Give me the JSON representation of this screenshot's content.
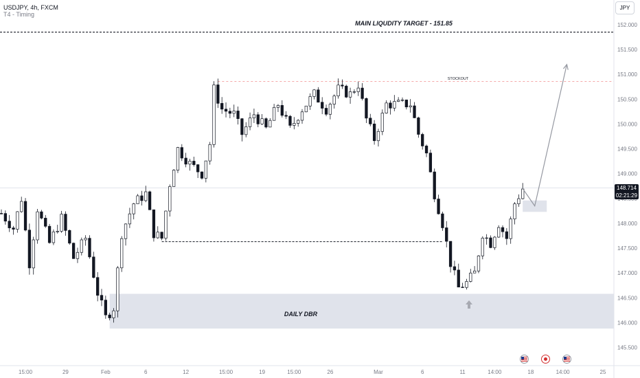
{
  "header": {
    "symbol": "USDJPY, 4h, FXCM",
    "indicator": "T4 - Timing"
  },
  "currency_label": "JPY",
  "last_price": {
    "price": "148.714",
    "countdown": "02:21:29"
  },
  "colors": {
    "up": "#131722",
    "down": "#131722",
    "zone": "#e0e3eb",
    "dashed_red": "#f28b8b",
    "arrow": "#9598a1",
    "badge_bg": "#131722"
  },
  "annotations": {
    "main_target": "MAIN LIQUDITY TARGET - 151.85",
    "stockout": "STOCKOUT",
    "daily_dbr": "DAILY DBR"
  },
  "events": [
    {
      "icon": "us-flag-icon"
    },
    {
      "icon": "event-dot-icon"
    },
    {
      "icon": "us-flag-icon"
    }
  ],
  "chart_data": {
    "type": "candlestick",
    "symbol": "USDJPY",
    "timeframe": "4h",
    "ylim": [
      145.3,
      152.2
    ],
    "y_ticks": [
      "152.000",
      "151.500",
      "151.000",
      "150.500",
      "150.000",
      "149.500",
      "149.000",
      "148.500",
      "148.000",
      "147.500",
      "147.000",
      "146.500",
      "146.000",
      "145.500"
    ],
    "x_ticks": [
      "15:00",
      "29",
      "Feb",
      "6",
      "12",
      "15:00",
      "19",
      "15:00",
      "26",
      "Mar",
      "6",
      "11",
      "14:00",
      "18",
      "14:00",
      "25"
    ],
    "x_tick_bars": [
      6,
      16,
      26,
      36,
      46,
      56,
      65,
      73,
      82,
      94,
      105,
      115,
      123,
      132,
      140,
      150
    ],
    "waypoints": [
      [
        0,
        148.2
      ],
      [
        3,
        147.9
      ],
      [
        5,
        148.5
      ],
      [
        7,
        147.2
      ],
      [
        9,
        148.3
      ],
      [
        12,
        147.6
      ],
      [
        15,
        148.1
      ],
      [
        18,
        147.3
      ],
      [
        21,
        147.7
      ],
      [
        24,
        146.6
      ],
      [
        26,
        146.1
      ],
      [
        28,
        146.3
      ],
      [
        30,
        147.8
      ],
      [
        33,
        148.4
      ],
      [
        36,
        148.6
      ],
      [
        38,
        147.8
      ],
      [
        40,
        147.7
      ],
      [
        42,
        148.8
      ],
      [
        44,
        149.5
      ],
      [
        47,
        149.2
      ],
      [
        50,
        149.0
      ],
      [
        52,
        149.6
      ],
      [
        53,
        150.7
      ],
      [
        55,
        150.3
      ],
      [
        58,
        150.2
      ],
      [
        60,
        149.8
      ],
      [
        63,
        150.2
      ],
      [
        66,
        149.9
      ],
      [
        69,
        150.4
      ],
      [
        72,
        149.9
      ],
      [
        75,
        150.3
      ],
      [
        78,
        150.6
      ],
      [
        81,
        150.3
      ],
      [
        84,
        150.7
      ],
      [
        87,
        150.6
      ],
      [
        89,
        150.8
      ],
      [
        91,
        150.1
      ],
      [
        93,
        149.7
      ],
      [
        96,
        150.4
      ],
      [
        99,
        150.4
      ],
      [
        102,
        150.4
      ],
      [
        104,
        149.8
      ],
      [
        106,
        149.4
      ],
      [
        108,
        148.6
      ],
      [
        110,
        148.0
      ],
      [
        112,
        147.2
      ],
      [
        114,
        146.7
      ],
      [
        116,
        146.8
      ],
      [
        118,
        147.0
      ],
      [
        120,
        147.8
      ],
      [
        122,
        147.6
      ],
      [
        124,
        148.0
      ],
      [
        126,
        147.7
      ],
      [
        128,
        148.4
      ],
      [
        130,
        148.7
      ]
    ],
    "levels": [
      {
        "label": "MAIN LIQUDITY TARGET - 151.85",
        "price": 151.85,
        "style": "dashed"
      },
      {
        "label": "STOCKOUT",
        "price": 150.86,
        "style": "dashed-red"
      },
      {
        "label": "",
        "price": 147.63,
        "style": "dashed"
      }
    ],
    "zones": [
      {
        "label": "DAILY DBR",
        "from": 145.88,
        "to": 146.58
      },
      {
        "label": "",
        "from": 148.23,
        "to": 148.46
      }
    ],
    "projection": [
      [
        130,
        148.7
      ],
      [
        133,
        148.35
      ],
      [
        141,
        151.2
      ]
    ],
    "last_price": 148.714,
    "grid": false
  }
}
